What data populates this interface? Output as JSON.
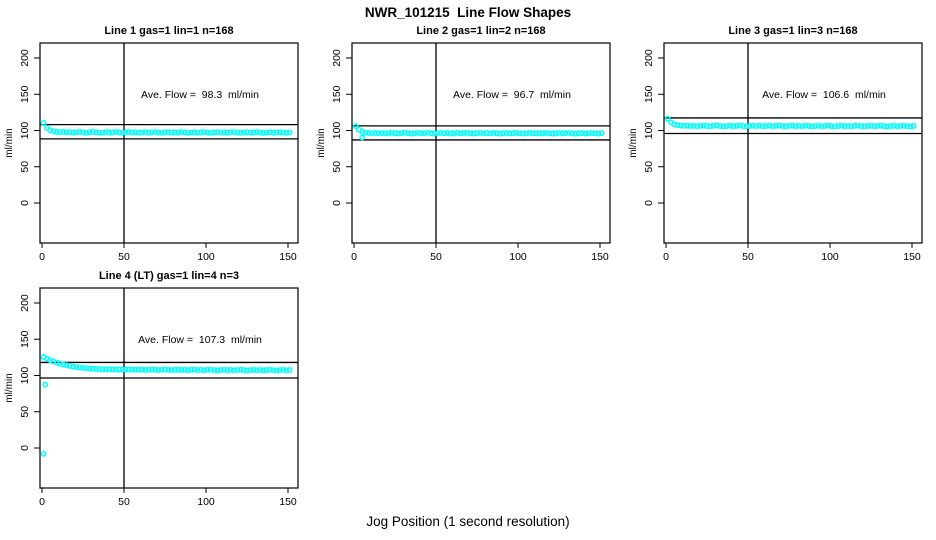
{
  "figure": {
    "main_title": "NWR_101215  Line Flow Shapes",
    "xlabel_outer": "Jog Position (1 second resolution)",
    "background_color": "#ffffff",
    "axis_color": "#000000",
    "marker_color": "#00ffff"
  },
  "chart_data": [
    {
      "type": "scatter",
      "title": "Line 1 gas=1 lin=1 n=168",
      "annotation": "Ave. Flow =  98.3  ml/min",
      "ave_flow_ml_min": 98.3,
      "n_points": 168,
      "ylabel": "ml/min",
      "xlim": [
        0,
        150
      ],
      "ylim": [
        0,
        200
      ],
      "xticks": [
        0,
        50,
        100,
        150
      ],
      "yticks": [
        0,
        50,
        100,
        150,
        200
      ],
      "vline_x": 50,
      "hlines": [
        108.1,
        88.5
      ],
      "marker_color": "#00ffff",
      "x_start": 1,
      "x_step": 2,
      "points_y": [
        110.3,
        103.6,
        100.2,
        98.7,
        98.1,
        97.7,
        98.0,
        97.4,
        97.8,
        97.1,
        97.6,
        98.0,
        97.3,
        96.9,
        97.6,
        98.1,
        97.4,
        96.8,
        97.2,
        97.8,
        97.1,
        97.5,
        98.0,
        97.3,
        96.7,
        97.4,
        97.9,
        97.2,
        97.6,
        96.9,
        97.3,
        97.7,
        97.1,
        97.5,
        97.9,
        97.2,
        96.8,
        97.4,
        97.7,
        97.0,
        97.5,
        97.1,
        97.8,
        97.3,
        96.7,
        97.2,
        97.6,
        97.0,
        97.4,
        97.8,
        97.1,
        96.7,
        97.3,
        97.7,
        97.0,
        97.4,
        96.9,
        97.5,
        97.8,
        97.2,
        96.8,
        97.3,
        97.6,
        97.0,
        97.4,
        97.7,
        97.1,
        96.7,
        97.2,
        97.5,
        96.9,
        97.3,
        97.6,
        97.1,
        96.8,
        97.3
      ],
      "outliers": []
    },
    {
      "type": "scatter",
      "title": "Line 2 gas=1 lin=2 n=168",
      "annotation": "Ave. Flow =  96.7  ml/min",
      "ave_flow_ml_min": 96.7,
      "n_points": 168,
      "ylabel": "ml/min",
      "xlim": [
        0,
        150
      ],
      "ylim": [
        0,
        200
      ],
      "xticks": [
        0,
        50,
        100,
        150
      ],
      "yticks": [
        0,
        50,
        100,
        150,
        200
      ],
      "vline_x": 50,
      "hlines": [
        106.4,
        87.0
      ],
      "marker_color": "#00ffff",
      "x_start": 1,
      "x_step": 2,
      "points_y": [
        106.1,
        100.9,
        98.3,
        97.1,
        96.7,
        96.3,
        96.6,
        96.1,
        96.5,
        95.9,
        96.4,
        96.8,
        96.2,
        95.8,
        96.4,
        96.9,
        96.2,
        95.7,
        96.1,
        96.6,
        96.0,
        96.4,
        96.8,
        96.1,
        95.6,
        96.3,
        96.7,
        96.1,
        96.5,
        95.8,
        96.2,
        96.6,
        96.0,
        96.4,
        96.8,
        96.1,
        95.7,
        96.3,
        96.6,
        95.9,
        96.4,
        96.0,
        96.7,
        96.2,
        95.6,
        96.1,
        96.5,
        95.9,
        96.3,
        96.7,
        96.0,
        95.6,
        96.2,
        96.6,
        95.9,
        96.3,
        95.8,
        96.4,
        96.7,
        96.1,
        95.7,
        96.2,
        96.5,
        95.9,
        96.3,
        96.6,
        96.0,
        95.6,
        96.1,
        96.4,
        95.8,
        96.2,
        96.5,
        96.0,
        95.7,
        96.2
      ],
      "outliers": [
        [
          5,
          90.3
        ]
      ]
    },
    {
      "type": "scatter",
      "title": "Line 3 gas=1 lin=3 n=168",
      "annotation": "Ave. Flow =  106.6  ml/min",
      "ave_flow_ml_min": 106.6,
      "n_points": 168,
      "ylabel": "ml/min",
      "xlim": [
        0,
        150
      ],
      "ylim": [
        0,
        200
      ],
      "xticks": [
        0,
        50,
        100,
        150
      ],
      "yticks": [
        0,
        50,
        100,
        150,
        200
      ],
      "vline_x": 50,
      "hlines": [
        117.3,
        95.9
      ],
      "marker_color": "#00ffff",
      "x_start": 1,
      "x_step": 2,
      "points_y": [
        116.2,
        111.3,
        108.6,
        107.3,
        106.8,
        106.4,
        106.7,
        106.1,
        106.5,
        105.9,
        106.4,
        106.8,
        106.2,
        105.8,
        106.4,
        106.9,
        106.2,
        105.7,
        106.1,
        106.6,
        106.0,
        106.4,
        106.8,
        106.1,
        105.6,
        106.3,
        106.7,
        106.1,
        106.5,
        105.8,
        106.2,
        106.6,
        106.0,
        106.4,
        106.8,
        106.1,
        105.7,
        106.3,
        106.6,
        105.9,
        106.4,
        106.0,
        106.7,
        106.2,
        105.6,
        106.1,
        106.5,
        105.9,
        106.3,
        106.7,
        106.0,
        105.6,
        106.2,
        106.6,
        105.9,
        106.3,
        105.8,
        106.4,
        106.7,
        106.1,
        105.7,
        106.2,
        106.5,
        105.9,
        106.3,
        106.6,
        106.0,
        105.6,
        106.1,
        106.4,
        105.8,
        106.2,
        106.5,
        106.0,
        105.7,
        106.2
      ],
      "outliers": []
    },
    {
      "type": "scatter",
      "title": "Line 4 (LT) gas=1 lin=4 n=3",
      "annotation": "Ave. Flow =  107.3  ml/min",
      "ave_flow_ml_min": 107.3,
      "n_points": 3,
      "ylabel": "ml/min",
      "xlim": [
        0,
        150
      ],
      "ylim": [
        0,
        200
      ],
      "xticks": [
        0,
        50,
        100,
        150
      ],
      "yticks": [
        0,
        50,
        100,
        150,
        200
      ],
      "vline_x": 50,
      "hlines": [
        118.0,
        96.6
      ],
      "marker_color": "#00ffff",
      "x_start": 1,
      "x_step": 2,
      "points_y": [
        125.6,
        123.2,
        121.1,
        119.3,
        117.7,
        116.3,
        115.1,
        114.0,
        113.1,
        112.3,
        111.6,
        111.0,
        110.5,
        110.0,
        109.6,
        109.3,
        109.0,
        108.8,
        108.6,
        108.4,
        108.7,
        108.3,
        108.5,
        108.1,
        108.4,
        108.0,
        108.3,
        107.9,
        108.2,
        107.8,
        108.1,
        107.7,
        108.0,
        108.2,
        107.8,
        107.6,
        108.0,
        108.3,
        107.7,
        107.5,
        107.9,
        108.1,
        107.6,
        108.0,
        107.4,
        107.8,
        108.1,
        107.5,
        107.9,
        107.3,
        107.7,
        108.0,
        107.5,
        107.1,
        107.6,
        107.9,
        107.4,
        107.8,
        107.2,
        107.6,
        108.0,
        107.4,
        107.0,
        107.5,
        107.9,
        107.3,
        107.7,
        107.1,
        107.6,
        107.9,
        107.3,
        107.0,
        107.5,
        107.8,
        107.2,
        107.6
      ],
      "outliers": [
        [
          2,
          87.5
        ],
        [
          1,
          -8
        ]
      ]
    }
  ]
}
